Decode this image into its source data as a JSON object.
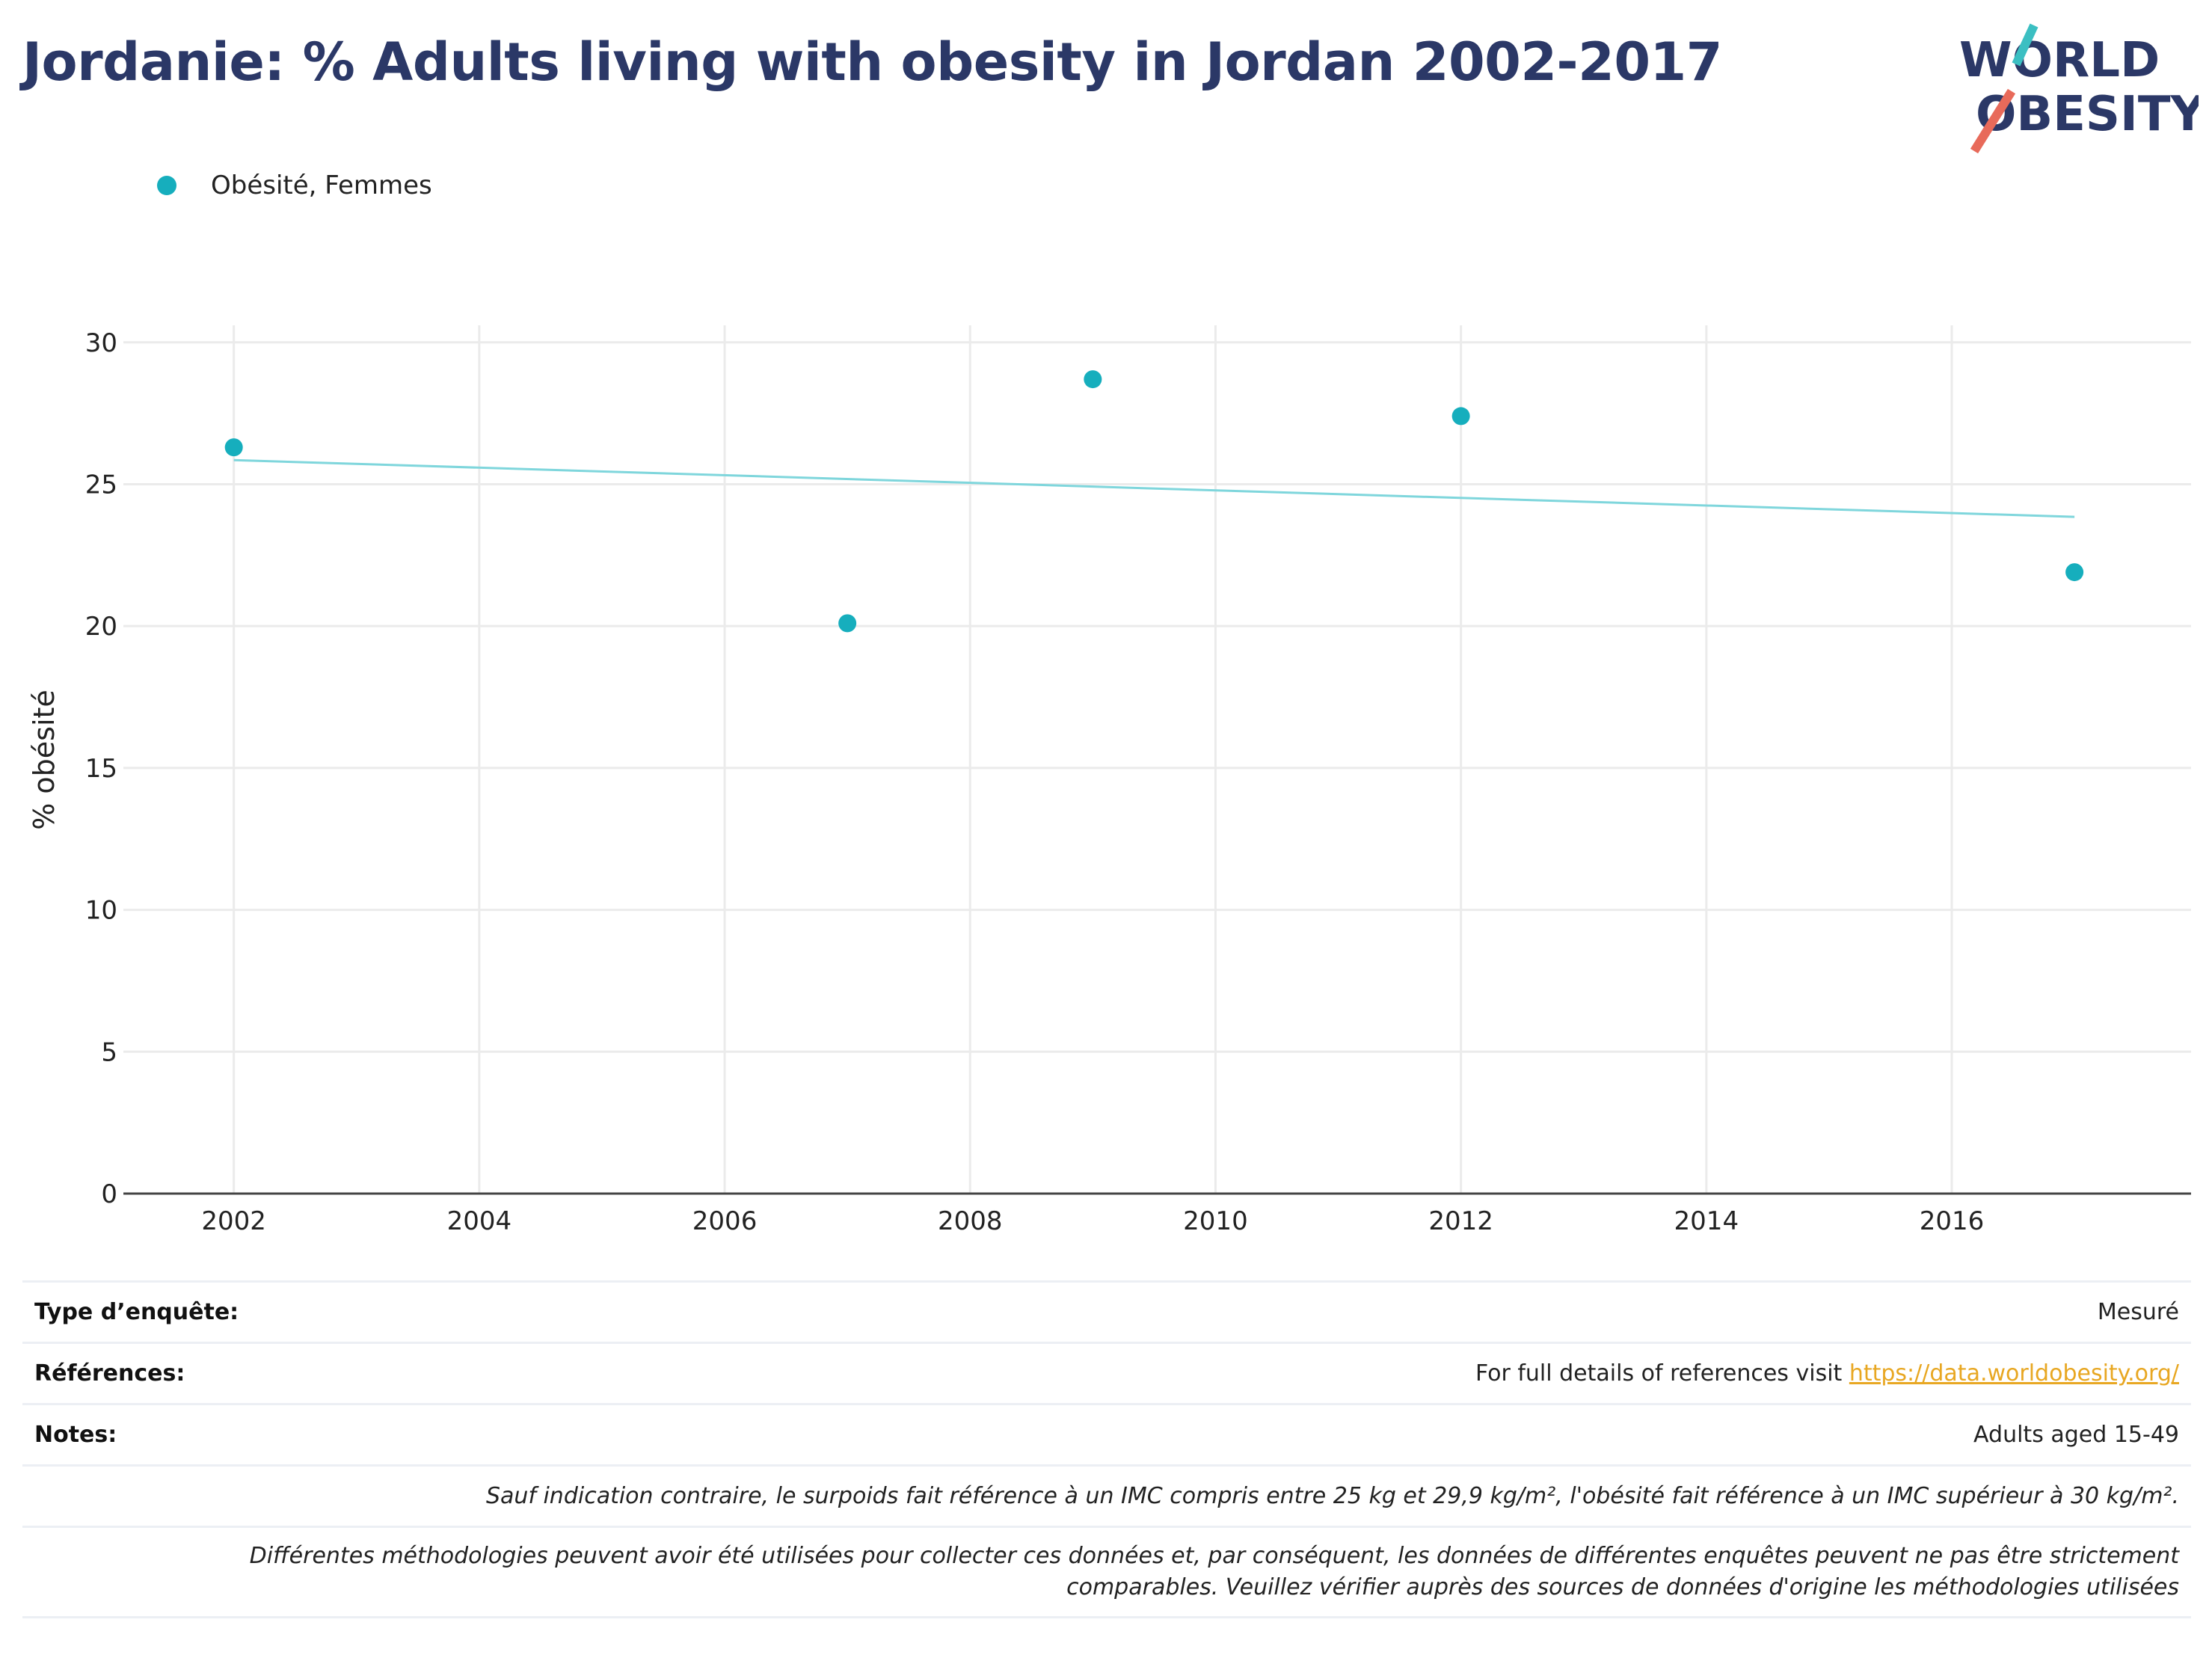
{
  "title": "Jordanie: % Adults living with obesity in Jordan 2002-2017",
  "logo": {
    "line1": "WORLD",
    "line2": "OBESITY",
    "accent1": "#3bbfc2",
    "accent2": "#e86a5a",
    "text_color": "#2b3867"
  },
  "colors": {
    "series": "#16aebd",
    "trend": "#7fd6dc",
    "title": "#2b3867"
  },
  "chart_data": {
    "type": "scatter",
    "title": "Jordanie: % Adults living with obesity in Jordan 2002-2017",
    "ylabel": "% obésité",
    "xlabel": "",
    "xlim": [
      2001.1,
      2017.95
    ],
    "ylim": [
      0,
      30.6
    ],
    "xticks": [
      2002,
      2004,
      2006,
      2008,
      2010,
      2012,
      2014,
      2016
    ],
    "yticks": [
      0,
      5,
      10,
      15,
      20,
      25,
      30
    ],
    "grid": true,
    "legend": "top-left",
    "series": [
      {
        "name": "Obésité, Femmes",
        "x": [
          2002,
          2007,
          2009,
          2012,
          2017
        ],
        "y": [
          26.3,
          20.1,
          28.7,
          27.4,
          21.9
        ]
      }
    ],
    "trendline": {
      "x": [
        2002,
        2017
      ],
      "y": [
        25.85,
        23.85
      ]
    }
  },
  "info": {
    "survey_label": "Type d’enquête:",
    "survey_value": "Mesuré",
    "refs_label": "Références:",
    "refs_prefix": "For full details of references visit ",
    "refs_link": "https://data.worldobesity.org/",
    "notes_label": "Notes:",
    "notes_value": "Adults aged 15-49",
    "note_bmi": "Sauf indication contraire, le surpoids fait référence à un IMC compris entre 25 kg et 29,9 kg/m², l'obésité fait référence à un IMC supérieur à 30 kg/m².",
    "note_methods_1": "Différentes méthodologies peuvent avoir été utilisées pour collecter ces données et, par conséquent, les données de différentes enquêtes peuvent ne pas être strictement",
    "note_methods_2": "comparables. Veuillez vérifier auprès des sources de données d'origine les méthodologies utilisées"
  }
}
